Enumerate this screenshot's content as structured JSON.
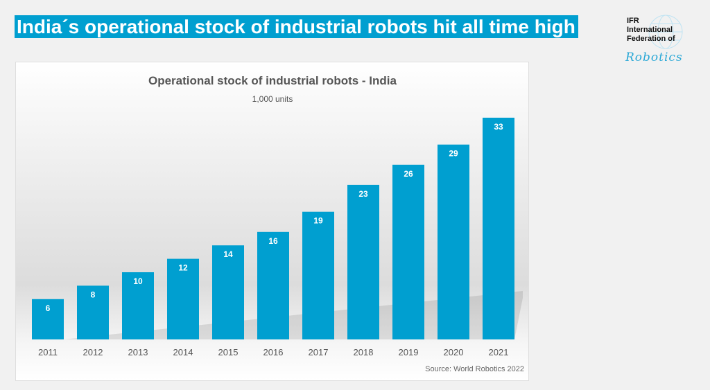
{
  "headline": "India´s operational stock of industrial robots hit all time high",
  "logo": {
    "line1": "IFR",
    "line2": "International",
    "line3": "Federation of",
    "line4": "Robotics"
  },
  "colors": {
    "accent": "#009fd0",
    "bar": "#009fd0",
    "text": "#555555"
  },
  "chart_data": {
    "type": "bar",
    "title": "Operational stock of industrial robots - India",
    "subtitle": "1,000 units",
    "categories": [
      "2011",
      "2012",
      "2013",
      "2014",
      "2015",
      "2016",
      "2017",
      "2018",
      "2019",
      "2020",
      "2021"
    ],
    "values": [
      6,
      8,
      10,
      12,
      14,
      16,
      19,
      23,
      26,
      29,
      33
    ],
    "xlabel": "",
    "ylabel": "",
    "ylim": [
      0,
      33
    ],
    "grid": false,
    "source": "Source: World Robotics 2022"
  }
}
